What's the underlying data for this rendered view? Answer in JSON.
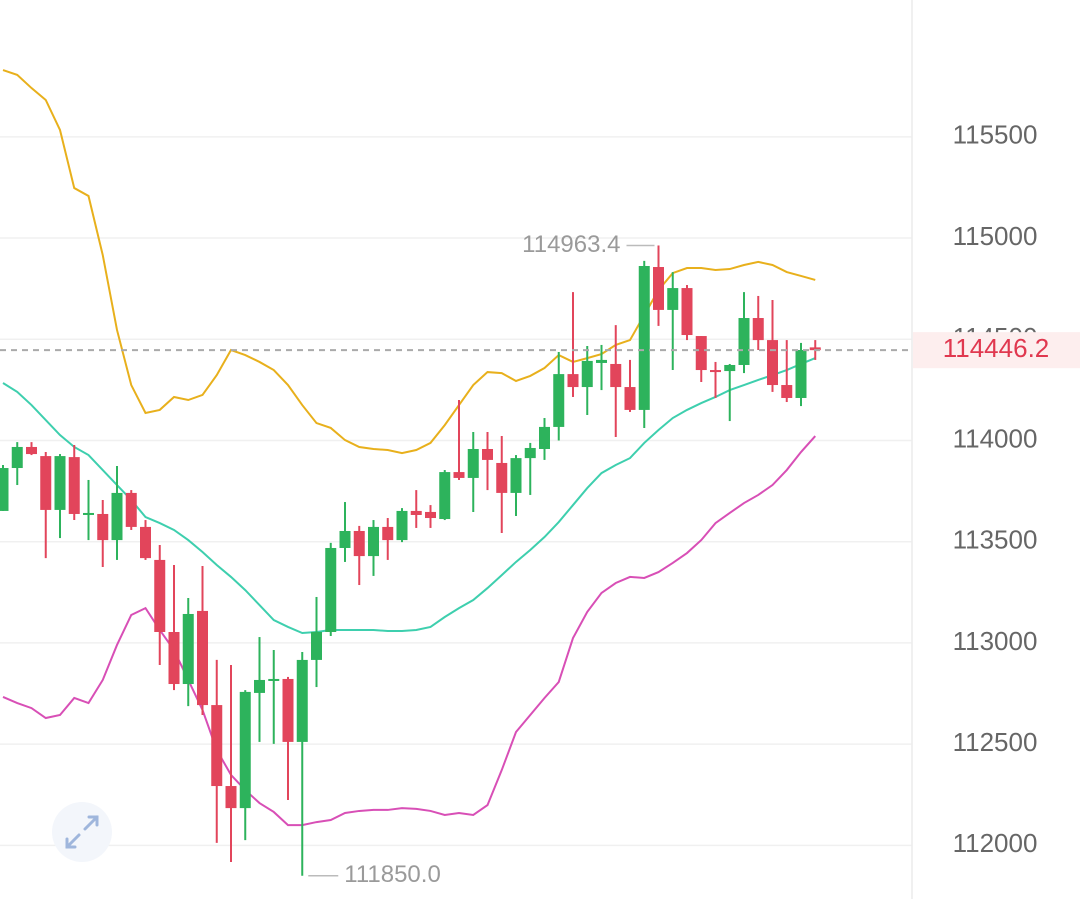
{
  "chart_data": {
    "type": "candlestick",
    "open": [
      113652,
      113864,
      113968,
      113923,
      113657,
      113918,
      113632,
      113637,
      113508,
      113741,
      113573,
      113410,
      113054,
      112797,
      113158,
      112693,
      112293,
      112184,
      112753,
      112812,
      112822,
      112511,
      112916,
      113054,
      113469,
      113553,
      113429,
      113573,
      113508,
      113652,
      113647,
      113612,
      113844,
      113815,
      113958,
      113889,
      113741,
      113913,
      113958,
      114067,
      114328,
      114264,
      114383,
      114378,
      114264,
      114151,
      114857,
      114645,
      114753,
      114516,
      114348,
      114343,
      114373,
      114605,
      114496,
      114274,
      114210,
      114460
    ],
    "high": [
      113879,
      113992,
      113992,
      113943,
      113933,
      113978,
      113805,
      113706,
      113874,
      113755,
      113607,
      113484,
      113385,
      113222,
      113380,
      112916,
      112891,
      112767,
      113029,
      112965,
      112832,
      112955,
      113227,
      113494,
      113696,
      113578,
      113607,
      113617,
      113666,
      113755,
      113681,
      113854,
      114200,
      114042,
      114042,
      114022,
      113928,
      113988,
      114111,
      114437,
      114733,
      114467,
      114472,
      114570,
      114398,
      114887,
      114963.4,
      114832,
      114768,
      114516,
      114388,
      114378,
      114733,
      114714,
      114694,
      114496,
      114482,
      114496
    ],
    "low": [
      113652,
      113780,
      113928,
      113419,
      113518,
      113607,
      113508,
      113375,
      113410,
      113558,
      113410,
      112891,
      112767,
      112688,
      112644,
      112012,
      111918,
      112026,
      112511,
      112501,
      112224,
      111850,
      112782,
      113034,
      113400,
      113286,
      113331,
      113410,
      113498,
      113568,
      113568,
      113607,
      113805,
      113647,
      113755,
      113543,
      113627,
      113731,
      113904,
      114000,
      114215,
      114126,
      114249,
      114017,
      114141,
      114062,
      114566,
      114348,
      114496,
      114289,
      114210,
      114096,
      114333,
      114447,
      114240,
      114190,
      114170,
      114398
    ],
    "close": [
      113864,
      113968,
      113933,
      113657,
      113923,
      113637,
      113642,
      113508,
      113741,
      113573,
      113419,
      113054,
      112797,
      113143,
      112693,
      112293,
      112184,
      112758,
      112817,
      112822,
      112511,
      112916,
      113054,
      113469,
      113553,
      113429,
      113573,
      113508,
      113652,
      113632,
      113617,
      113844,
      113815,
      113958,
      113904,
      113741,
      113913,
      113963,
      114067,
      114328,
      114264,
      114393,
      114398,
      114264,
      114151,
      114862,
      114645,
      114753,
      114521,
      114348,
      114338,
      114373,
      114605,
      114496,
      114274,
      114210,
      114447,
      114446.2
    ],
    "up_color": "#2db35c",
    "down_color": "#e2455b",
    "lines": [
      {
        "color": "#e8b01c",
        "values": [
          115830,
          115806,
          115741,
          115682,
          115534,
          115247,
          115208,
          114916,
          114546,
          114274,
          114136,
          114151,
          114215,
          114200,
          114225,
          114323,
          114447,
          114422,
          114388,
          114348,
          114274,
          114175,
          114086,
          114062,
          114002,
          113968,
          113958,
          113953,
          113938,
          113953,
          113988,
          114076,
          114175,
          114274,
          114338,
          114333,
          114294,
          114319,
          114358,
          114422,
          114388,
          114407,
          114427,
          114472,
          114496,
          114620,
          114743,
          114827,
          114852,
          114852,
          114842,
          114847,
          114867,
          114882,
          114867,
          114832,
          114813,
          114793
        ]
      },
      {
        "color": "#3ecfae",
        "values": [
          114284,
          114240,
          114175,
          114101,
          114027,
          113968,
          113928,
          113854,
          113780,
          113706,
          113622,
          113592,
          113558,
          113508,
          113449,
          113385,
          113326,
          113261,
          113187,
          113113,
          113079,
          113049,
          113054,
          113064,
          113064,
          113064,
          113064,
          113059,
          113059,
          113064,
          113079,
          113128,
          113172,
          113212,
          113271,
          113335,
          113400,
          113459,
          113523,
          113597,
          113681,
          113765,
          113839,
          113879,
          113913,
          113988,
          114052,
          114111,
          114151,
          114185,
          114215,
          114249,
          114274,
          114299,
          114323,
          114348,
          114378,
          114407
        ]
      },
      {
        "color": "#d84fb6",
        "values": [
          112733,
          112703,
          112678,
          112629,
          112644,
          112728,
          112703,
          112817,
          112990,
          113138,
          113172,
          113064,
          112965,
          112817,
          112669,
          112471,
          112348,
          112273,
          112209,
          112165,
          112100,
          112100,
          112115,
          112125,
          112160,
          112170,
          112175,
          112175,
          112184,
          112180,
          112170,
          112150,
          112160,
          112150,
          112199,
          112372,
          112560,
          112644,
          112728,
          112807,
          113024,
          113153,
          113247,
          113296,
          113326,
          113321,
          113350,
          113395,
          113444,
          113508,
          113592,
          113642,
          113691,
          113731,
          113780,
          113854,
          113943,
          114022
        ]
      }
    ],
    "annotations": [
      {
        "value": 114963.4,
        "label": "114963.4"
      },
      {
        "value": 111850,
        "label": "111850.0"
      }
    ],
    "ylim": [
      111735,
      116176
    ],
    "yticks": [
      112000,
      112500,
      113000,
      113500,
      114000,
      114500,
      115000,
      115500
    ],
    "grid": true
  }
}
